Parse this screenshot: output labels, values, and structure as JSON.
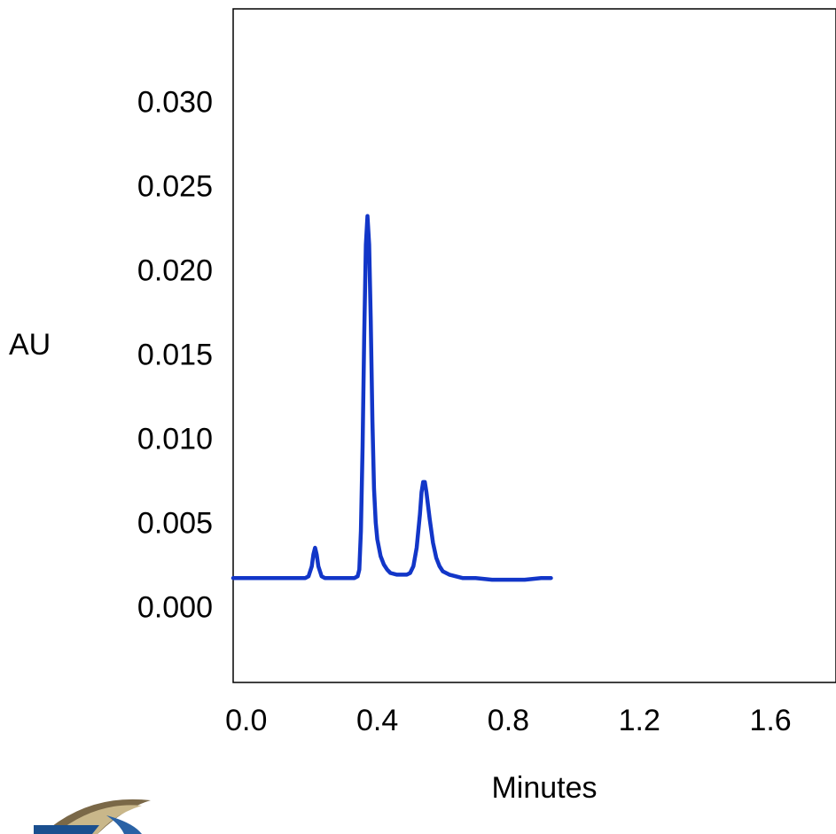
{
  "chart_data": {
    "type": "line",
    "title": "",
    "xlabel": "Minutes",
    "ylabel": "AU",
    "xlim": [
      -0.04,
      1.8
    ],
    "ylim": [
      -0.0045,
      0.0355
    ],
    "x_ticks": [
      {
        "value": 0.0,
        "label": "0.0"
      },
      {
        "value": 0.4,
        "label": "0.4"
      },
      {
        "value": 0.8,
        "label": "0.8"
      },
      {
        "value": 1.2,
        "label": "1.2"
      },
      {
        "value": 1.6,
        "label": "1.6"
      }
    ],
    "y_ticks": [
      {
        "value": 0.0,
        "label": "0.000"
      },
      {
        "value": 0.005,
        "label": "0.005"
      },
      {
        "value": 0.01,
        "label": "0.010"
      },
      {
        "value": 0.015,
        "label": "0.015"
      },
      {
        "value": 0.02,
        "label": "0.020"
      },
      {
        "value": 0.025,
        "label": "0.025"
      },
      {
        "value": 0.03,
        "label": "0.030"
      }
    ],
    "grid": false,
    "series": [
      {
        "color": "#1236c8",
        "x": [
          -0.04,
          0.0,
          0.05,
          0.1,
          0.15,
          0.17,
          0.18,
          0.19,
          0.2,
          0.205,
          0.21,
          0.215,
          0.22,
          0.23,
          0.24,
          0.26,
          0.3,
          0.33,
          0.34,
          0.345,
          0.35,
          0.355,
          0.36,
          0.365,
          0.37,
          0.375,
          0.38,
          0.385,
          0.39,
          0.395,
          0.4,
          0.41,
          0.42,
          0.43,
          0.44,
          0.46,
          0.48,
          0.49,
          0.5,
          0.51,
          0.52,
          0.53,
          0.535,
          0.54,
          0.545,
          0.55,
          0.56,
          0.57,
          0.58,
          0.59,
          0.6,
          0.62,
          0.64,
          0.66,
          0.7,
          0.75,
          0.8,
          0.85,
          0.9,
          0.93
        ],
        "y": [
          0.0017,
          0.0017,
          0.0017,
          0.0017,
          0.0017,
          0.0017,
          0.0017,
          0.0018,
          0.0024,
          0.0031,
          0.0035,
          0.0031,
          0.0024,
          0.0018,
          0.0017,
          0.0017,
          0.0017,
          0.0017,
          0.0018,
          0.0022,
          0.0045,
          0.0095,
          0.016,
          0.0215,
          0.0232,
          0.0215,
          0.017,
          0.011,
          0.007,
          0.005,
          0.004,
          0.003,
          0.0025,
          0.0022,
          0.002,
          0.0019,
          0.0019,
          0.0019,
          0.002,
          0.0024,
          0.0035,
          0.0055,
          0.0068,
          0.0074,
          0.0074,
          0.0068,
          0.0052,
          0.0038,
          0.0029,
          0.0024,
          0.0021,
          0.0019,
          0.0018,
          0.0017,
          0.0017,
          0.0016,
          0.0016,
          0.0016,
          0.0017,
          0.0017
        ]
      }
    ]
  }
}
